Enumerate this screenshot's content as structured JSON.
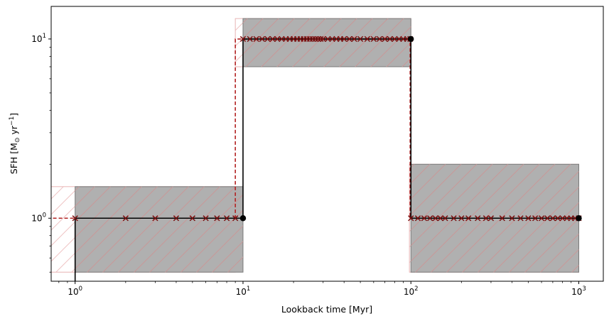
{
  "chart_data": {
    "type": "line",
    "xlabel": "Lookback time [Myr]",
    "ylabel_main": "SFH [M",
    "ylabel_sub": "⊙",
    "ylabel_mid": " yr",
    "ylabel_sup": "−1",
    "ylabel_end": "]",
    "xscale": "log",
    "yscale": "log",
    "xlim": [
      0.72,
      1400
    ],
    "ylim": [
      0.445,
      15.2
    ],
    "xticks": [
      {
        "value": 1,
        "base": "10",
        "exp": "0"
      },
      {
        "value": 10,
        "base": "10",
        "exp": "1"
      },
      {
        "value": 100,
        "base": "10",
        "exp": "2"
      },
      {
        "value": 1000,
        "base": "10",
        "exp": "3"
      }
    ],
    "yticks": [
      {
        "value": 1,
        "base": "10",
        "exp": "0"
      },
      {
        "value": 10,
        "base": "10",
        "exp": "1"
      }
    ],
    "grid": false,
    "colors": {
      "band_fill": "#b0b0b0",
      "band_edge": "#7a7a7a",
      "hatch": "#c89898",
      "ghost_edge": "#e8b4b4",
      "red": "#b22222",
      "cross": "#7a1010",
      "black": "#000000"
    },
    "bands": [
      {
        "x0": 1,
        "x1": 10,
        "y0": 0.5,
        "y1": 1.5
      },
      {
        "x0": 10,
        "x1": 100,
        "y0": 7,
        "y1": 13
      },
      {
        "x0": 100,
        "x1": 1000,
        "y0": 0.5,
        "y1": 2
      }
    ],
    "ghost_bands": [
      {
        "x0": 0.5,
        "x1": 9,
        "y0": 0.5,
        "y1": 1.5
      },
      {
        "x0": 9,
        "x1": 100,
        "y0": 7,
        "y1": 13
      },
      {
        "x0": 98,
        "x1": 1000,
        "y0": 0.5,
        "y1": 2
      }
    ],
    "series": [
      {
        "style": "solid-black",
        "x": [
          1,
          1,
          10,
          10,
          100,
          100,
          1000
        ],
        "y": [
          0.3,
          1,
          1,
          10,
          10,
          1,
          1
        ],
        "markers_x": [
          10,
          100,
          1000
        ],
        "markers_y": [
          1,
          10,
          1
        ]
      },
      {
        "style": "dashed-red",
        "x": [
          0.5,
          9,
          9,
          99,
          99,
          1000
        ],
        "y": [
          1,
          1,
          10,
          10,
          1,
          1
        ]
      }
    ],
    "crosses": [
      {
        "segment": 1,
        "x": [
          1,
          2,
          3,
          4,
          5,
          6,
          7,
          8,
          9
        ],
        "y": 1
      },
      {
        "segment": 2,
        "x": [
          10,
          11,
          12,
          13,
          14,
          15,
          16,
          17,
          18,
          19,
          20,
          21,
          22,
          23,
          24,
          25,
          26,
          27,
          28,
          29,
          30,
          32,
          34,
          36,
          38,
          40,
          43,
          46,
          50,
          55,
          60,
          65,
          70,
          75,
          80,
          85,
          90,
          95,
          99
        ],
        "y": 10
      },
      {
        "segment": 3,
        "x": [
          100,
          110,
          120,
          130,
          140,
          150,
          160,
          180,
          200,
          220,
          250,
          280,
          300,
          350,
          400,
          450,
          500,
          550,
          600,
          650,
          700,
          750,
          800,
          850,
          900,
          950,
          1000
        ],
        "y": 1
      }
    ]
  }
}
